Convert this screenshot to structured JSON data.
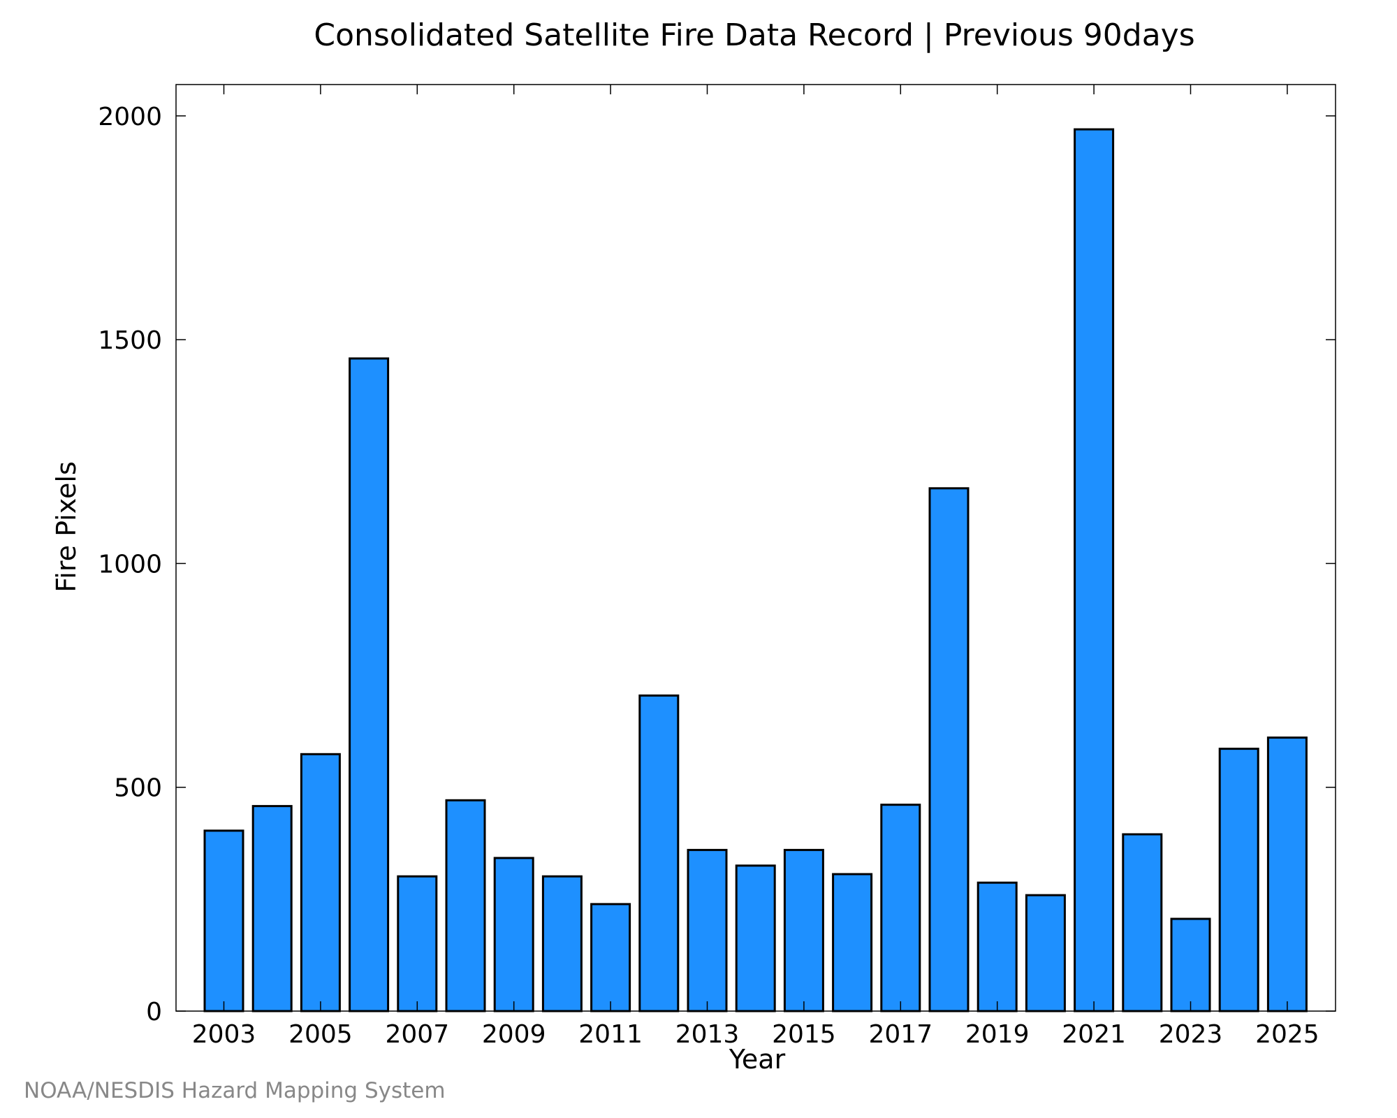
{
  "chart_data": {
    "type": "bar",
    "title": "Consolidated Satellite Fire Data Record | Previous 90days",
    "xlabel": "Year",
    "ylabel": "Fire Pixels",
    "categories": [
      "2003",
      "2004",
      "2005",
      "2006",
      "2007",
      "2008",
      "2009",
      "2010",
      "2011",
      "2012",
      "2013",
      "2014",
      "2015",
      "2016",
      "2017",
      "2018",
      "2019",
      "2020",
      "2021",
      "2022",
      "2023",
      "2024",
      "2025"
    ],
    "values": [
      403,
      458,
      574,
      1458,
      301,
      471,
      342,
      301,
      239,
      705,
      360,
      325,
      360,
      306,
      461,
      1168,
      287,
      259,
      1970,
      395,
      206,
      586,
      611
    ],
    "x_tick_labels": [
      "2003",
      "2005",
      "2007",
      "2009",
      "2011",
      "2013",
      "2015",
      "2017",
      "2019",
      "2021",
      "2023",
      "2025"
    ],
    "y_ticks": [
      0,
      500,
      1000,
      1500,
      2000
    ],
    "ylim": [
      0,
      2070
    ],
    "grid": false,
    "bar_color": "#1e90ff",
    "bar_edge_color": "#000000"
  },
  "credit": "NOAA/NESDIS Hazard Mapping System"
}
